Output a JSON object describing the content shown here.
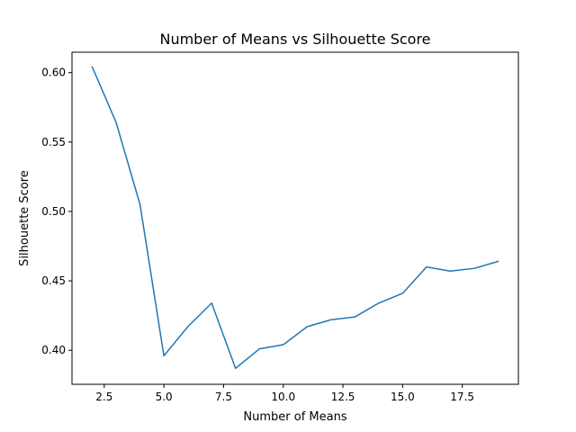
{
  "chart_data": {
    "type": "line",
    "title": "Number of Means vs Silhouette Score",
    "xlabel": "Number of Means",
    "ylabel": "Silhouette Score",
    "xlim": [
      1.15,
      19.85
    ],
    "ylim": [
      0.3755,
      0.6147
    ],
    "x_ticks": [
      2.5,
      5.0,
      7.5,
      10.0,
      12.5,
      15.0,
      17.5
    ],
    "x_tick_labels": [
      "2.5",
      "5.0",
      "7.5",
      "10.0",
      "12.5",
      "15.0",
      "17.5"
    ],
    "y_ticks": [
      0.4,
      0.45,
      0.5,
      0.55,
      0.6
    ],
    "y_tick_labels": [
      "0.40",
      "0.45",
      "0.50",
      "0.55",
      "0.60"
    ],
    "grid": false,
    "series": [
      {
        "color": "#1f77b4",
        "x": [
          2,
          3,
          4,
          5,
          6,
          7,
          8,
          9,
          10,
          11,
          12,
          13,
          14,
          15,
          16,
          17,
          18,
          19
        ],
        "values": [
          0.604,
          0.564,
          0.505,
          0.396,
          0.417,
          0.434,
          0.387,
          0.401,
          0.404,
          0.417,
          0.422,
          0.424,
          0.434,
          0.441,
          0.46,
          0.457,
          0.459,
          0.464
        ]
      }
    ]
  }
}
